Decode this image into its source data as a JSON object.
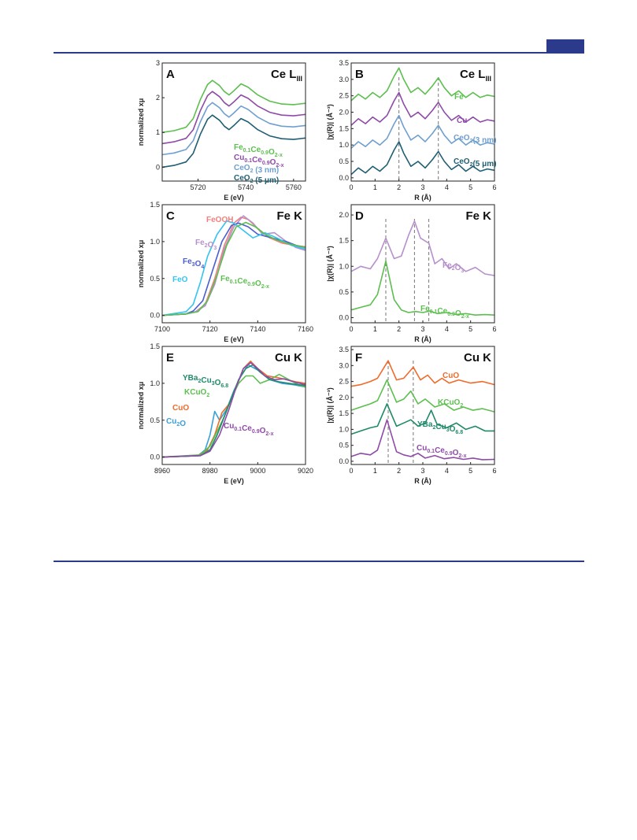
{
  "page": {
    "accent_color": "#2c3a8c"
  },
  "chart_data": [
    {
      "panel": "A",
      "type": "line",
      "title": "Ce L",
      "title_sub": "III",
      "xlabel": "E (eV)",
      "ylabel": "normalized xμ",
      "xlim": [
        5705,
        5765
      ],
      "ylim": [
        -0.4,
        3.0
      ],
      "xticks": [
        5720,
        5740,
        5760
      ],
      "yticks": [
        0,
        1,
        2,
        3
      ],
      "series": [
        {
          "name": "Fe0.1Ce0.9O2-x",
          "color": "#5cbf4f",
          "offset": 1.0
        },
        {
          "name": "Cu0.1Ce0.9O2-x",
          "color": "#8e4aa8",
          "offset": 0.68
        },
        {
          "name": "CeO2 (3 nm)",
          "color": "#6f9fd0",
          "offset": 0.36
        },
        {
          "name": "CeO2 (5 μm)",
          "color": "#1f5f73",
          "offset": 0.0
        }
      ],
      "x": [
        5705,
        5710,
        5715,
        5718,
        5721,
        5724,
        5726,
        5729,
        5731,
        5733,
        5735,
        5738,
        5741,
        5745,
        5750,
        5755,
        5760,
        5765
      ],
      "base_y": [
        0.0,
        0.05,
        0.15,
        0.4,
        0.95,
        1.38,
        1.5,
        1.35,
        1.18,
        1.08,
        1.2,
        1.4,
        1.3,
        1.08,
        0.9,
        0.82,
        0.8,
        0.84
      ],
      "labels": [
        {
          "text": "Fe",
          "sub": "0.1",
          "text2": "Ce",
          "sub2": "0.9",
          "text3": "O",
          "sub3": "2-x",
          "color": "#5cbf4f"
        },
        {
          "text": "Cu",
          "sub": "0.1",
          "text2": "Ce",
          "sub2": "0.9",
          "text3": "O",
          "sub3": "2-x",
          "color": "#8e4aa8"
        },
        {
          "text": "CeO",
          "sub": "2",
          "text2": " (3 nm)",
          "color": "#6f9fd0"
        },
        {
          "text": "CeO",
          "sub": "2",
          "text2": " (5 μm)",
          "color": "#1f5f73"
        }
      ]
    },
    {
      "panel": "B",
      "type": "line",
      "title": "Ce L",
      "title_sub": "III",
      "xlabel": "R (Å)",
      "ylabel": "|χ(R)| (Å⁻³)",
      "xlim": [
        0,
        6
      ],
      "ylim": [
        -0.1,
        3.5
      ],
      "xticks": [
        0,
        1,
        2,
        3,
        4,
        5,
        6
      ],
      "yticks": [
        0.0,
        0.5,
        1.0,
        1.5,
        2.0,
        2.5,
        3.0,
        3.5
      ],
      "vlines": [
        2.0,
        3.65
      ],
      "series": [
        {
          "name": "Fe",
          "color": "#5cbf4f",
          "offset": 2.3
        },
        {
          "name": "Cu",
          "color": "#8e4aa8",
          "offset": 1.55
        },
        {
          "name": "CeO2 (3 nm)",
          "color": "#6f9fd0",
          "offset": 0.85
        },
        {
          "name": "CeO2 (5 μm)",
          "color": "#1f5f73",
          "offset": 0.05
        }
      ],
      "x": [
        0,
        0.3,
        0.6,
        0.9,
        1.2,
        1.5,
        1.8,
        2.0,
        2.2,
        2.5,
        2.8,
        3.1,
        3.4,
        3.65,
        3.9,
        4.2,
        4.5,
        4.8,
        5.1,
        5.4,
        5.7,
        6.0
      ],
      "base_y": [
        0.05,
        0.25,
        0.1,
        0.3,
        0.15,
        0.35,
        0.8,
        1.05,
        0.7,
        0.3,
        0.45,
        0.25,
        0.5,
        0.75,
        0.45,
        0.2,
        0.35,
        0.15,
        0.3,
        0.15,
        0.22,
        0.18
      ],
      "labels": [
        {
          "text": "Fe",
          "color": "#5cbf4f"
        },
        {
          "text": "Cu",
          "color": "#8e4aa8"
        },
        {
          "text": "CeO",
          "sub": "2",
          "text2": "(3 nm)",
          "color": "#6f9fd0"
        },
        {
          "text": "CeO",
          "sub": "2",
          "text2": "(5 μm)",
          "color": "#1f5f73"
        }
      ]
    },
    {
      "panel": "C",
      "type": "line",
      "title": "Fe K",
      "xlabel": "E (eV)",
      "ylabel": "normalized xμ",
      "xlim": [
        7100,
        7160
      ],
      "ylim": [
        -0.1,
        1.5
      ],
      "xticks": [
        7100,
        7120,
        7140,
        7160
      ],
      "yticks": [
        0.0,
        0.5,
        1.0,
        1.5
      ],
      "series": [
        {
          "name": "FeOOH",
          "color": "#f08080",
          "x": [
            7100,
            7110,
            7114,
            7118,
            7122,
            7126,
            7130,
            7133,
            7136,
            7140,
            7145,
            7150,
            7155,
            7160
          ],
          "y": [
            0,
            0.02,
            0.05,
            0.15,
            0.5,
            0.95,
            1.25,
            1.33,
            1.3,
            1.18,
            1.05,
            0.98,
            0.95,
            0.93
          ]
        },
        {
          "name": "Fe2O3",
          "color": "#b690cc",
          "x": [
            7100,
            7110,
            7114,
            7118,
            7122,
            7126,
            7130,
            7134,
            7138,
            7142,
            7147,
            7152,
            7156,
            7160
          ],
          "y": [
            0,
            0.02,
            0.05,
            0.13,
            0.42,
            0.9,
            1.2,
            1.35,
            1.25,
            1.1,
            1.12,
            1.0,
            0.92,
            0.88
          ]
        },
        {
          "name": "Fe3O4",
          "color": "#4a5ed0",
          "x": [
            7100,
            7110,
            7113,
            7117,
            7121,
            7125,
            7129,
            7132,
            7136,
            7140,
            7146,
            7152,
            7156,
            7160
          ],
          "y": [
            0,
            0.02,
            0.06,
            0.2,
            0.6,
            1.0,
            1.22,
            1.25,
            1.2,
            1.1,
            1.05,
            1.0,
            0.95,
            0.92
          ]
        },
        {
          "name": "FeO",
          "color": "#35c3f0",
          "x": [
            7100,
            7110,
            7113,
            7116,
            7119,
            7123,
            7127,
            7130,
            7134,
            7138,
            7143,
            7148,
            7154,
            7160
          ],
          "y": [
            0,
            0.05,
            0.15,
            0.45,
            0.8,
            1.1,
            1.28,
            1.25,
            1.15,
            1.05,
            1.12,
            1.05,
            0.95,
            0.9
          ]
        },
        {
          "name": "Fe0.1Ce0.9O2-x",
          "color": "#5cbf4f",
          "x": [
            7100,
            7110,
            7115,
            7119,
            7123,
            7127,
            7131,
            7135,
            7139,
            7143,
            7148,
            7153,
            7157,
            7160
          ],
          "y": [
            0,
            0.02,
            0.05,
            0.2,
            0.55,
            0.95,
            1.2,
            1.26,
            1.2,
            1.1,
            1.02,
            0.97,
            0.94,
            0.92
          ]
        }
      ],
      "labels": [
        {
          "text": "FeOOH",
          "color": "#f08080"
        },
        {
          "text": "Fe",
          "sub": "2",
          "text2": "O",
          "sub2": "3",
          "color": "#b690cc"
        },
        {
          "text": "Fe",
          "sub": "3",
          "text2": "O",
          "sub2": "4",
          "color": "#4a5ed0"
        },
        {
          "text": "FeO",
          "color": "#35c3f0"
        },
        {
          "text": "Fe",
          "sub": "0.1",
          "text2": "Ce",
          "sub2": "0.9",
          "text3": "O",
          "sub3": "2-x",
          "color": "#5cbf4f"
        }
      ]
    },
    {
      "panel": "D",
      "type": "line",
      "title": "Fe K",
      "xlabel": "R (Å)",
      "ylabel": "|χ(R)| (Å⁻³)",
      "xlim": [
        0,
        6
      ],
      "ylim": [
        -0.1,
        2.2
      ],
      "xticks": [
        0,
        1,
        2,
        3,
        4,
        5,
        6
      ],
      "yticks": [
        0.0,
        0.5,
        1.0,
        1.5,
        2.0
      ],
      "vlines": [
        1.45,
        2.65,
        3.25
      ],
      "series": [
        {
          "name": "Fe2O3",
          "color": "#b690cc",
          "x": [
            0,
            0.4,
            0.8,
            1.1,
            1.45,
            1.8,
            2.1,
            2.4,
            2.65,
            2.9,
            3.25,
            3.5,
            3.8,
            4.1,
            4.4,
            4.8,
            5.2,
            5.6,
            6.0
          ],
          "y": [
            0.9,
            1.0,
            0.95,
            1.15,
            1.55,
            1.15,
            1.2,
            1.6,
            1.88,
            1.55,
            1.45,
            1.05,
            1.15,
            0.95,
            1.05,
            0.9,
            0.98,
            0.85,
            0.82
          ]
        },
        {
          "name": "Fe0.1Ce0.9O2-x",
          "color": "#5cbf4f",
          "x": [
            0,
            0.4,
            0.8,
            1.1,
            1.45,
            1.8,
            2.1,
            2.4,
            2.7,
            3.0,
            3.3,
            3.6,
            4.0,
            4.4,
            4.8,
            5.2,
            5.6,
            6.0
          ],
          "y": [
            0.15,
            0.2,
            0.25,
            0.45,
            1.1,
            0.35,
            0.15,
            0.1,
            0.12,
            0.1,
            0.13,
            0.08,
            0.1,
            0.06,
            0.08,
            0.05,
            0.06,
            0.05
          ]
        }
      ],
      "labels": [
        {
          "text": "Fe",
          "sub": "2",
          "text2": "O",
          "sub2": "3",
          "color": "#b690cc"
        },
        {
          "text": "Fe",
          "sub": "0.1",
          "text2": "Ce",
          "sub2": "0.9",
          "text3": "O",
          "sub3": "2-x",
          "color": "#5cbf4f"
        }
      ]
    },
    {
      "panel": "E",
      "type": "line",
      "title": "Cu K",
      "xlabel": "E (eV)",
      "ylabel": "normalized xμ",
      "xlim": [
        8960,
        9020
      ],
      "ylim": [
        -0.1,
        1.5
      ],
      "xticks": [
        8960,
        8980,
        9000,
        9020
      ],
      "yticks": [
        0.0,
        0.5,
        1.0,
        1.5
      ],
      "series": [
        {
          "name": "Cu2O",
          "color": "#3aa0d8",
          "x": [
            8960,
            8975,
            8978,
            8980,
            8982,
            8984,
            8987,
            8990,
            8993,
            8996,
            9000,
            9005,
            9010,
            9015,
            9020
          ],
          "y": [
            0,
            0.02,
            0.1,
            0.3,
            0.62,
            0.5,
            0.65,
            0.9,
            1.1,
            1.25,
            1.18,
            1.05,
            1.0,
            0.98,
            0.95
          ]
        },
        {
          "name": "CuO",
          "color": "#f06a2a",
          "x": [
            8960,
            8975,
            8979,
            8982,
            8985,
            8988,
            8991,
            8994,
            8997,
            9000,
            9004,
            9008,
            9012,
            9016,
            9020
          ],
          "y": [
            0,
            0.02,
            0.1,
            0.3,
            0.6,
            0.72,
            0.95,
            1.2,
            1.3,
            1.2,
            1.1,
            1.08,
            1.05,
            1.02,
            1.0
          ]
        },
        {
          "name": "KCuO2",
          "color": "#5cbf4f",
          "x": [
            8960,
            8976,
            8980,
            8983,
            8986,
            8989,
            8992,
            8995,
            8998,
            9001,
            9005,
            9009,
            9013,
            9017,
            9020
          ],
          "y": [
            0,
            0.03,
            0.15,
            0.35,
            0.55,
            0.8,
            1.0,
            1.1,
            1.1,
            1.0,
            1.05,
            1.12,
            1.05,
            0.98,
            0.95
          ]
        },
        {
          "name": "YBa2Cu3O6.8",
          "color": "#1f8a6a",
          "x": [
            8960,
            8976,
            8980,
            8983,
            8986,
            8989,
            8992,
            8995,
            8998,
            9001,
            9005,
            9009,
            9013,
            9017,
            9020
          ],
          "y": [
            0,
            0.02,
            0.1,
            0.3,
            0.55,
            0.8,
            1.05,
            1.2,
            1.25,
            1.15,
            1.05,
            1.02,
            1.0,
            0.98,
            0.97
          ]
        },
        {
          "name": "Cu0.1Ce0.9O2-x",
          "color": "#8e4aa8",
          "x": [
            8960,
            8976,
            8980,
            8984,
            8988,
            8991,
            8994,
            8997,
            9000,
            9003,
            9007,
            9011,
            9015,
            9020
          ],
          "y": [
            0,
            0.02,
            0.08,
            0.3,
            0.65,
            0.95,
            1.2,
            1.28,
            1.2,
            1.1,
            1.05,
            1.06,
            1.02,
            0.98
          ]
        }
      ],
      "labels": [
        {
          "text": "YBa",
          "sub": "2",
          "text2": "Cu",
          "sub2": "3",
          "text3": "O",
          "sub3": "6.8",
          "color": "#1f8a6a"
        },
        {
          "text": "KCuO",
          "sub": "2",
          "color": "#5cbf4f"
        },
        {
          "text": "CuO",
          "color": "#f06a2a"
        },
        {
          "text": "Cu",
          "sub": "2",
          "text2": "O",
          "color": "#3aa0d8"
        },
        {
          "text": "Cu",
          "sub": "0.1",
          "text2": "Ce",
          "sub2": "0.9",
          "text3": "O",
          "sub3": "2-x",
          "color": "#8e4aa8"
        }
      ]
    },
    {
      "panel": "F",
      "type": "line",
      "title": "Cu K",
      "xlabel": "R (Å)",
      "ylabel": "|χ(R)| (Å⁻³)",
      "xlim": [
        0,
        6
      ],
      "ylim": [
        -0.1,
        3.6
      ],
      "xticks": [
        0,
        1,
        2,
        3,
        4,
        5,
        6
      ],
      "yticks": [
        0.0,
        0.5,
        1.0,
        1.5,
        2.0,
        2.5,
        3.0,
        3.5
      ],
      "vlines": [
        1.55,
        2.6
      ],
      "series": [
        {
          "name": "CuO",
          "color": "#f06a2a",
          "x": [
            0,
            0.4,
            0.8,
            1.1,
            1.55,
            1.9,
            2.2,
            2.6,
            2.9,
            3.2,
            3.5,
            3.8,
            4.1,
            4.5,
            5.0,
            5.5,
            6.0
          ],
          "y": [
            2.35,
            2.4,
            2.5,
            2.6,
            3.15,
            2.55,
            2.6,
            2.95,
            2.55,
            2.7,
            2.45,
            2.6,
            2.45,
            2.55,
            2.45,
            2.5,
            2.4
          ]
        },
        {
          "name": "KCuO2",
          "color": "#5cbf4f",
          "x": [
            0,
            0.4,
            0.8,
            1.1,
            1.5,
            1.9,
            2.2,
            2.5,
            2.8,
            3.1,
            3.5,
            3.9,
            4.3,
            4.7,
            5.1,
            5.5,
            6.0
          ],
          "y": [
            1.6,
            1.7,
            1.8,
            1.9,
            2.55,
            1.85,
            1.95,
            2.2,
            1.8,
            1.95,
            1.7,
            1.8,
            1.6,
            1.7,
            1.6,
            1.65,
            1.55
          ]
        },
        {
          "name": "YBa2Cu3O6.8",
          "color": "#1f8a6a",
          "x": [
            0,
            0.4,
            0.8,
            1.1,
            1.5,
            1.9,
            2.2,
            2.5,
            2.8,
            3.1,
            3.35,
            3.6,
            4.0,
            4.4,
            4.8,
            5.2,
            5.6,
            6.0
          ],
          "y": [
            0.85,
            0.95,
            1.05,
            1.1,
            1.8,
            1.1,
            1.2,
            1.3,
            1.1,
            1.2,
            1.6,
            1.15,
            1.05,
            1.2,
            1.0,
            1.1,
            0.95,
            0.95
          ]
        },
        {
          "name": "Cu0.1Ce0.9O2-x",
          "color": "#8e4aa8",
          "x": [
            0,
            0.4,
            0.8,
            1.1,
            1.5,
            1.9,
            2.2,
            2.5,
            2.8,
            3.1,
            3.5,
            3.9,
            4.3,
            4.7,
            5.1,
            5.5,
            6.0
          ],
          "y": [
            0.15,
            0.25,
            0.2,
            0.35,
            1.3,
            0.3,
            0.2,
            0.15,
            0.25,
            0.1,
            0.18,
            0.08,
            0.12,
            0.06,
            0.1,
            0.05,
            0.06
          ]
        }
      ],
      "labels": [
        {
          "text": "CuO",
          "color": "#f06a2a"
        },
        {
          "text": "KCuO",
          "sub": "2",
          "color": "#5cbf4f"
        },
        {
          "text": "YBa",
          "sub": "2",
          "text2": "Cu",
          "sub2": "3",
          "text3": "O",
          "sub3": "6.8",
          "color": "#1f8a6a"
        },
        {
          "text": "Cu",
          "sub": "0.1",
          "text2": "Ce",
          "sub2": "0.9",
          "text3": "O",
          "sub3": "2-x",
          "color": "#8e4aa8"
        }
      ]
    }
  ]
}
